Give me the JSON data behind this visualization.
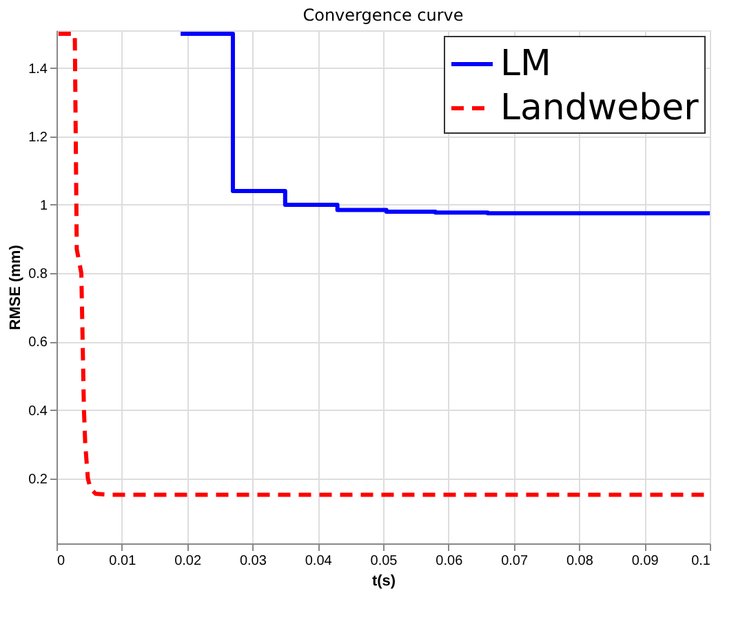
{
  "chart_data": {
    "type": "line",
    "title": "Convergence curve",
    "xlabel": "t(s)",
    "ylabel": "RMSE (mm)",
    "xlim": [
      0,
      0.1
    ],
    "xticks": [
      0,
      0.01,
      0.02,
      0.03,
      0.04,
      0.05,
      0.06,
      0.07,
      0.08,
      0.09,
      0.1
    ],
    "ylim": [
      0.01,
      1.51
    ],
    "yticks": [
      0.2,
      0.4,
      0.6,
      0.8,
      1,
      1.2,
      1.4
    ],
    "grid": true,
    "legend": "top right",
    "marker": "none",
    "series": [
      {
        "name": "LM",
        "type": "step",
        "color": "#0000ff",
        "line_style": "solid",
        "x": [
          0.019,
          0.027,
          0.035,
          0.043,
          0.0505,
          0.058,
          0.066,
          0.1
        ],
        "values": [
          1.5,
          1.04,
          1.0,
          0.985,
          0.98,
          0.977,
          0.975,
          0.973
        ]
      },
      {
        "name": "Landweber",
        "type": "line",
        "color": "#ff0000",
        "line_style": "dashed",
        "x": [
          0.0003,
          0.0028,
          0.0031,
          0.0038,
          0.004,
          0.0042,
          0.0044,
          0.0048,
          0.0052,
          0.006,
          0.008,
          0.1
        ],
        "values": [
          1.5,
          1.5,
          0.87,
          0.8,
          0.6,
          0.4,
          0.3,
          0.2,
          0.17,
          0.155,
          0.152,
          0.152
        ]
      }
    ]
  }
}
